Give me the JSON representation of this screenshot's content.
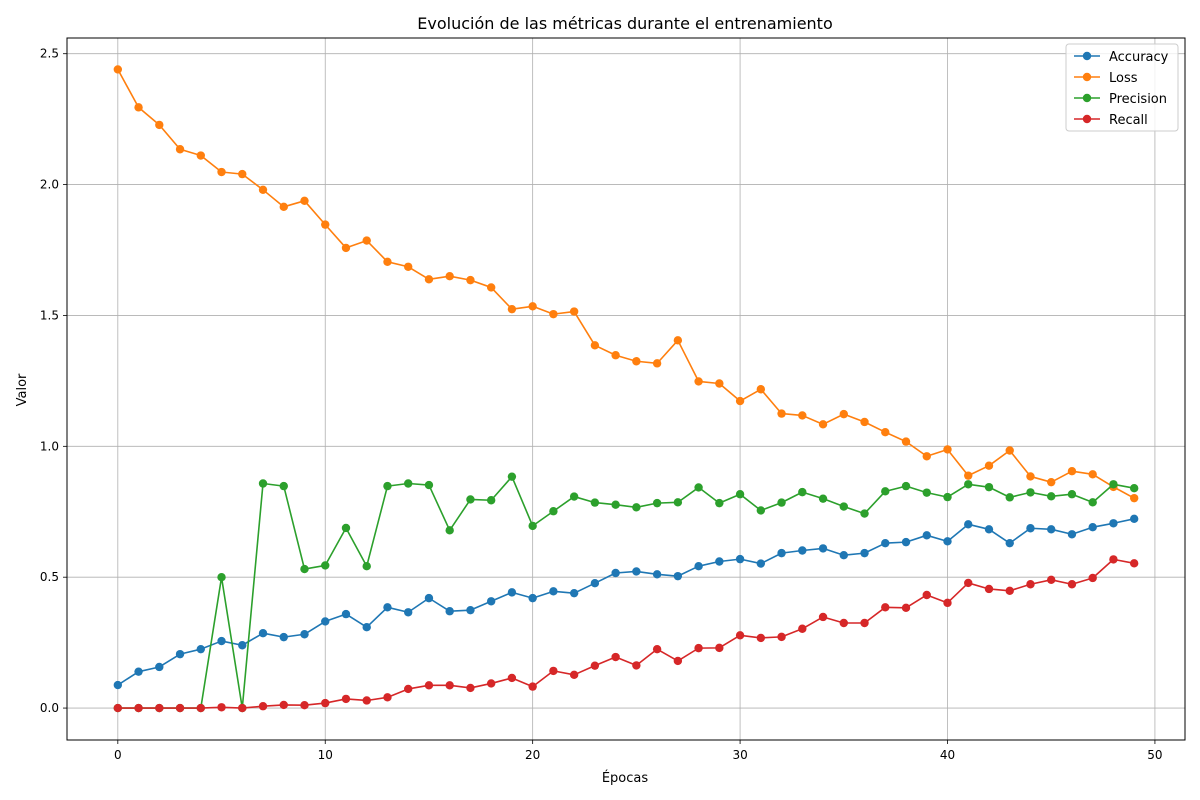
{
  "chart_data": {
    "type": "line",
    "title": "Evolución de las métricas durante el entrenamiento",
    "xlabel": "Épocas",
    "ylabel": "Valor",
    "xlim": [
      -2.45,
      51.45
    ],
    "ylim": [
      -0.122,
      2.56
    ],
    "xticks": [
      0,
      10,
      20,
      30,
      40,
      50
    ],
    "xtick_labels": [
      "0",
      "10",
      "20",
      "30",
      "40",
      "50"
    ],
    "yticks": [
      0.0,
      0.5,
      1.0,
      1.5,
      2.0,
      2.5
    ],
    "ytick_labels": [
      "0.0",
      "0.5",
      "1.0",
      "1.5",
      "2.0",
      "2.5"
    ],
    "grid": true,
    "legend_position": "top-right",
    "x": [
      0,
      1,
      2,
      3,
      4,
      5,
      6,
      7,
      8,
      9,
      10,
      11,
      12,
      13,
      14,
      15,
      16,
      17,
      18,
      19,
      20,
      21,
      22,
      23,
      24,
      25,
      26,
      27,
      28,
      29,
      30,
      31,
      32,
      33,
      34,
      35,
      36,
      37,
      38,
      39,
      40,
      41,
      42,
      43,
      44,
      45,
      46,
      47,
      48,
      49
    ],
    "series": [
      {
        "name": "Accuracy",
        "color": "#1f77b4",
        "values": [
          0.088,
          0.139,
          0.157,
          0.206,
          0.225,
          0.256,
          0.24,
          0.286,
          0.271,
          0.282,
          0.331,
          0.359,
          0.309,
          0.385,
          0.366,
          0.42,
          0.37,
          0.374,
          0.408,
          0.442,
          0.42,
          0.446,
          0.439,
          0.477,
          0.516,
          0.522,
          0.511,
          0.504,
          0.542,
          0.56,
          0.569,
          0.552,
          0.592,
          0.602,
          0.61,
          0.584,
          0.592,
          0.63,
          0.634,
          0.66,
          0.637,
          0.702,
          0.683,
          0.63,
          0.687,
          0.683,
          0.664,
          0.691,
          0.706,
          0.723
        ]
      },
      {
        "name": "Loss",
        "color": "#ff7f0e",
        "values": [
          2.44,
          2.295,
          2.228,
          2.135,
          2.111,
          2.048,
          2.04,
          1.98,
          1.915,
          1.938,
          1.847,
          1.758,
          1.786,
          1.705,
          1.686,
          1.638,
          1.65,
          1.635,
          1.607,
          1.524,
          1.535,
          1.505,
          1.515,
          1.386,
          1.348,
          1.325,
          1.317,
          1.405,
          1.248,
          1.24,
          1.173,
          1.218,
          1.125,
          1.118,
          1.084,
          1.123,
          1.093,
          1.054,
          1.018,
          0.962,
          0.988,
          0.888,
          0.926,
          0.984,
          0.885,
          0.863,
          0.905,
          0.893,
          0.845,
          0.802
        ]
      },
      {
        "name": "Precision",
        "color": "#2ca02c",
        "values": [
          0.0,
          0.0,
          0.0,
          0.0,
          0.0,
          0.5,
          0.0,
          0.858,
          0.848,
          0.531,
          0.545,
          0.688,
          0.542,
          0.848,
          0.858,
          0.852,
          0.679,
          0.797,
          0.794,
          0.884,
          0.696,
          0.752,
          0.808,
          0.785,
          0.777,
          0.767,
          0.783,
          0.786,
          0.843,
          0.783,
          0.817,
          0.755,
          0.785,
          0.825,
          0.8,
          0.77,
          0.743,
          0.828,
          0.848,
          0.823,
          0.806,
          0.855,
          0.844,
          0.805,
          0.824,
          0.809,
          0.817,
          0.786,
          0.855,
          0.84
        ]
      },
      {
        "name": "Recall",
        "color": "#d62728",
        "values": [
          0.0,
          0.0,
          0.0,
          0.0,
          0.0,
          0.003,
          0.0,
          0.007,
          0.012,
          0.011,
          0.019,
          0.035,
          0.029,
          0.041,
          0.073,
          0.087,
          0.087,
          0.077,
          0.094,
          0.115,
          0.082,
          0.142,
          0.127,
          0.162,
          0.195,
          0.163,
          0.225,
          0.18,
          0.229,
          0.23,
          0.278,
          0.268,
          0.272,
          0.303,
          0.348,
          0.325,
          0.325,
          0.385,
          0.383,
          0.432,
          0.402,
          0.478,
          0.455,
          0.448,
          0.473,
          0.49,
          0.473,
          0.497,
          0.568,
          0.553
        ]
      }
    ]
  }
}
